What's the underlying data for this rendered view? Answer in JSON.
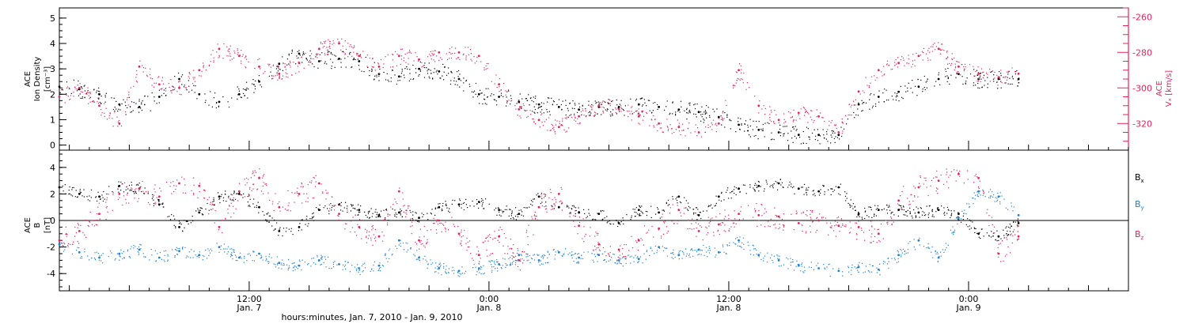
{
  "figure": {
    "xlabel": "hours:minutes, Jan.  7, 2010 - Jan.  9, 2010",
    "x_ticks": [
      {
        "hours": 12,
        "time": "12:00",
        "date": "Jan. 7"
      },
      {
        "hours": 24,
        "time": "0:00",
        "date": "Jan. 8"
      },
      {
        "hours": 36,
        "time": "12:00",
        "date": "Jan. 8"
      },
      {
        "hours": 48,
        "time": "0:00",
        "date": "Jan. 9"
      }
    ],
    "colors": {
      "black": "#000000",
      "red": "#e8215a",
      "blue": "#1e7fd6"
    }
  },
  "chart_data": [
    {
      "type": "scatter",
      "title": "",
      "ylabel_line1": "ACE",
      "ylabel_line2": "Ion Density",
      "ylabel_unit": "[cm⁻³]",
      "xlim": [
        2.5,
        56
      ],
      "x_unit": "hours since Jan. 7 0:00",
      "ylim": [
        -0.2,
        5.4
      ],
      "y_ticks": [
        0,
        1,
        2,
        3,
        4,
        5
      ],
      "right_axis": {
        "ylabel_line1": "ACE",
        "ylabel_line2": "Vₓ [km/s]",
        "ylim": [
          -335,
          -255
        ],
        "y_ticks": [
          -320,
          -300,
          -280,
          -260
        ],
        "color": "#e8215a"
      },
      "series": [
        {
          "axis": "left",
          "color": "#000000",
          "x": [
            2.5,
            3.5,
            4.5,
            5.5,
            6.5,
            7.5,
            8.5,
            9.5,
            10.5,
            11.5,
            12.5,
            13.5,
            14.5,
            15.5,
            16.5,
            17.5,
            18.5,
            19.5,
            20.5,
            21.5,
            22.5,
            23.5,
            24.5,
            25.5,
            26.5,
            27.5,
            28.5,
            29.5,
            30.5,
            31.5,
            32.5,
            33.5,
            34.5,
            35.5,
            36.5,
            37.5,
            38.5,
            39.5,
            40.5,
            41.5,
            42.5,
            43.5,
            44.5,
            45.5,
            46.5,
            47.5,
            48.5,
            49.5,
            50.5
          ],
          "y": [
            2.3,
            2.2,
            2.0,
            1.6,
            1.5,
            1.9,
            2.6,
            2.0,
            1.7,
            2.0,
            2.5,
            3.2,
            3.6,
            3.3,
            3.4,
            3.3,
            2.8,
            2.7,
            3.0,
            2.9,
            2.6,
            2.0,
            1.9,
            1.7,
            1.6,
            1.5,
            1.4,
            1.5,
            1.5,
            1.6,
            1.5,
            1.4,
            1.3,
            1.1,
            0.8,
            0.6,
            0.5,
            0.4,
            0.4,
            0.4,
            1.6,
            1.9,
            2.1,
            2.3,
            2.6,
            2.8,
            2.6,
            2.6,
            2.6
          ]
        },
        {
          "axis": "right",
          "color": "#e8215a",
          "x": [
            2.5,
            3.5,
            4.5,
            5.5,
            6.5,
            7.5,
            8.5,
            9.5,
            10.5,
            11.5,
            12.5,
            13.5,
            14.5,
            15.5,
            16.5,
            17.5,
            18.5,
            19.5,
            20.5,
            21.5,
            22.5,
            23.5,
            24.5,
            25.5,
            26.5,
            27.5,
            28.5,
            29.5,
            30.5,
            31.5,
            32.5,
            33.5,
            34.5,
            35.5,
            36.5,
            37.5,
            38.5,
            39.5,
            40.5,
            41.5,
            42.5,
            43.5,
            44.5,
            45.5,
            46.5,
            47.5,
            48.5,
            49.5,
            50.5
          ],
          "y": [
            -305,
            -300,
            -310,
            -320,
            -288,
            -298,
            -300,
            -290,
            -278,
            -282,
            -288,
            -292,
            -286,
            -278,
            -275,
            -282,
            -288,
            -282,
            -284,
            -280,
            -280,
            -282,
            -298,
            -312,
            -318,
            -322,
            -316,
            -310,
            -312,
            -316,
            -320,
            -322,
            -325,
            -320,
            -290,
            -310,
            -318,
            -314,
            -316,
            -325,
            -302,
            -290,
            -286,
            -282,
            -278,
            -288,
            -292,
            -294,
            -292
          ]
        }
      ]
    },
    {
      "type": "scatter",
      "title": "",
      "ylabel_line1": "ACE",
      "ylabel_line2": "B",
      "ylabel_unit": "[nT]",
      "xlim": [
        2.5,
        56
      ],
      "x_unit": "hours since Jan. 7 0:00",
      "ylim": [
        -5.3,
        5.3
      ],
      "y_ticks": [
        -4,
        -2,
        0,
        2,
        4
      ],
      "zero_line": true,
      "series": [
        {
          "name": "Bx",
          "color": "#000000",
          "x": [
            2.5,
            3.5,
            4.5,
            5.5,
            6.5,
            7.5,
            8.5,
            9.5,
            10.5,
            11.5,
            12.5,
            13.5,
            14.5,
            15.5,
            16.5,
            17.5,
            18.5,
            19.5,
            20.5,
            21.5,
            22.5,
            23.5,
            24.5,
            25.5,
            26.5,
            27.5,
            28.5,
            29.5,
            30.5,
            31.5,
            32.5,
            33.5,
            34.5,
            35.5,
            36.5,
            37.5,
            38.5,
            39.5,
            40.5,
            41.5,
            42.5,
            43.5,
            44.5,
            45.5,
            46.5,
            47.5,
            48.5,
            49.5,
            50.5
          ],
          "y": [
            2.5,
            2.0,
            1.8,
            2.6,
            2.4,
            1.2,
            -0.5,
            0.6,
            1.8,
            2.0,
            1.0,
            -0.8,
            -0.5,
            0.8,
            1.2,
            0.8,
            0.4,
            0.6,
            0.2,
            1.0,
            1.2,
            1.4,
            0.8,
            0.5,
            1.8,
            1.0,
            0.6,
            0.5,
            -0.2,
            0.8,
            0.6,
            1.8,
            0.4,
            1.8,
            2.4,
            2.6,
            2.8,
            2.4,
            2.2,
            2.5,
            0.5,
            0.8,
            0.8,
            0.6,
            0.8,
            0.5,
            -1.0,
            -1.2,
            -0.2
          ]
        },
        {
          "name": "By",
          "color": "#1e7fd6",
          "x": [
            2.5,
            3.5,
            4.5,
            5.5,
            6.5,
            7.5,
            8.5,
            9.5,
            10.5,
            11.5,
            12.5,
            13.5,
            14.5,
            15.5,
            16.5,
            17.5,
            18.5,
            19.5,
            20.5,
            21.5,
            22.5,
            23.5,
            24.5,
            25.5,
            26.5,
            27.5,
            28.5,
            29.5,
            30.5,
            31.5,
            32.5,
            33.5,
            34.5,
            35.5,
            36.5,
            37.5,
            38.5,
            39.5,
            40.5,
            41.5,
            42.5,
            43.5,
            44.5,
            45.5,
            46.5,
            47.5,
            48.5,
            49.5,
            50.5
          ],
          "y": [
            -1.8,
            -2.4,
            -2.8,
            -2.5,
            -2.2,
            -2.8,
            -2.3,
            -2.6,
            -2.0,
            -2.8,
            -2.5,
            -3.2,
            -3.4,
            -3.0,
            -3.3,
            -3.6,
            -3.4,
            -1.5,
            -2.8,
            -3.6,
            -3.8,
            -3.6,
            -3.3,
            -2.6,
            -3.0,
            -2.4,
            -2.8,
            -2.6,
            -3.0,
            -2.9,
            -2.0,
            -2.6,
            -2.2,
            -2.4,
            -1.5,
            -2.6,
            -3.0,
            -3.4,
            -3.6,
            -3.8,
            -3.5,
            -3.7,
            -2.6,
            -1.5,
            -2.8,
            0.2,
            2.2,
            1.8,
            0.4
          ]
        },
        {
          "name": "Bz",
          "color": "#e8215a",
          "x": [
            2.5,
            3.5,
            4.5,
            5.5,
            6.5,
            7.5,
            8.5,
            9.5,
            10.5,
            11.5,
            12.5,
            13.5,
            14.5,
            15.5,
            16.5,
            17.5,
            18.5,
            19.5,
            20.5,
            21.5,
            22.5,
            23.5,
            24.5,
            25.5,
            26.5,
            27.5,
            28.5,
            29.5,
            30.5,
            31.5,
            32.5,
            33.5,
            34.5,
            35.5,
            36.5,
            37.5,
            38.5,
            39.5,
            40.5,
            41.5,
            42.5,
            43.5,
            44.5,
            45.5,
            46.5,
            47.5,
            48.5,
            49.5,
            50.5
          ],
          "y": [
            -1.5,
            -0.8,
            0.5,
            2.0,
            2.4,
            1.8,
            2.8,
            2.6,
            -0.5,
            2.2,
            3.2,
            1.0,
            2.0,
            2.8,
            0.5,
            -0.5,
            -1.2,
            2.2,
            -1.5,
            0.0,
            -1.0,
            -2.6,
            -1.2,
            -3.0,
            1.0,
            2.0,
            -0.4,
            -1.8,
            -2.2,
            -1.5,
            -0.6,
            0.8,
            -0.8,
            -0.3,
            0.5,
            0.4,
            0.3,
            -0.2,
            0.0,
            -0.4,
            -0.5,
            -1.0,
            1.5,
            2.5,
            3.0,
            3.5,
            3.2,
            -2.5,
            -1.2
          ]
        }
      ],
      "legend": [
        {
          "label": "Bx",
          "base": "B",
          "sub": "x",
          "color": "#000000"
        },
        {
          "label": "By",
          "base": "B",
          "sub": "y",
          "color": "#1e7fd6"
        },
        {
          "label": "Bz",
          "base": "B",
          "sub": "z",
          "color": "#e8215a"
        }
      ]
    }
  ]
}
